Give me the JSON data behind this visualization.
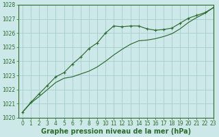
{
  "title": "Graphe pression niveau de la mer (hPa)",
  "background_color": "#cce8e8",
  "grid_color": "#a8cccc",
  "line_color": "#2d6b2d",
  "xlim": [
    -0.5,
    23
  ],
  "ylim": [
    1020,
    1028
  ],
  "xticks": [
    0,
    1,
    2,
    3,
    4,
    5,
    6,
    7,
    8,
    9,
    10,
    11,
    12,
    13,
    14,
    15,
    16,
    17,
    18,
    19,
    20,
    21,
    22,
    23
  ],
  "yticks": [
    1020,
    1021,
    1022,
    1023,
    1024,
    1025,
    1026,
    1027,
    1028
  ],
  "line1_x": [
    0,
    1,
    2,
    3,
    4,
    5,
    6,
    7,
    8,
    9,
    10,
    11,
    12,
    13,
    14,
    15,
    16,
    17,
    18,
    19,
    20,
    21,
    22,
    23
  ],
  "line1_y": [
    1020.4,
    1021.1,
    1021.7,
    1022.3,
    1022.9,
    1023.2,
    1023.8,
    1024.3,
    1024.9,
    1025.3,
    1026.0,
    1026.5,
    1026.45,
    1026.5,
    1026.5,
    1026.3,
    1026.2,
    1026.25,
    1026.35,
    1026.7,
    1027.05,
    1027.25,
    1027.45,
    1027.8
  ],
  "line2_x": [
    0,
    1,
    2,
    3,
    4,
    5,
    6,
    7,
    8,
    9,
    10,
    11,
    12,
    13,
    14,
    15,
    16,
    17,
    18,
    19,
    20,
    21,
    22,
    23
  ],
  "line2_y": [
    1020.4,
    1021.05,
    1021.5,
    1022.0,
    1022.5,
    1022.8,
    1022.9,
    1023.1,
    1023.3,
    1023.6,
    1024.0,
    1024.45,
    1024.85,
    1025.2,
    1025.45,
    1025.5,
    1025.6,
    1025.75,
    1025.95,
    1026.3,
    1026.75,
    1027.1,
    1027.4,
    1027.8
  ],
  "title_fontsize": 7,
  "tick_fontsize": 5.5,
  "xlabel_fontsize": 7
}
